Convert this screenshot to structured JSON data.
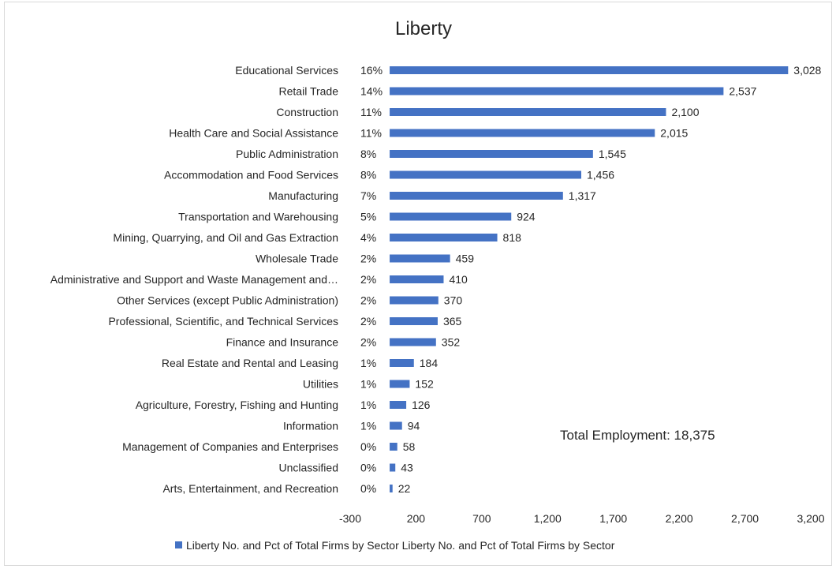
{
  "chart_data": {
    "type": "bar",
    "orientation": "horizontal",
    "title": "Liberty",
    "categories": [
      "Educational Services",
      "Retail Trade",
      "Construction",
      "Health Care and Social Assistance",
      "Public Administration",
      "Accommodation and Food Services",
      "Manufacturing",
      "Transportation and Warehousing",
      "Mining, Quarrying, and Oil and Gas Extraction",
      "Wholesale Trade",
      "Administrative and Support and Waste Management and…",
      "Other Services (except Public Administration)",
      "Professional, Scientific, and Technical Services",
      "Finance and Insurance",
      "Real Estate and Rental and Leasing",
      "Utilities",
      "Agriculture, Forestry, Fishing and Hunting",
      "Information",
      "Management of Companies and Enterprises",
      "Unclassified",
      "Arts, Entertainment, and Recreation"
    ],
    "percents": [
      "16%",
      "14%",
      "11%",
      "11%",
      "8%",
      "8%",
      "7%",
      "5%",
      "4%",
      "2%",
      "2%",
      "2%",
      "2%",
      "2%",
      "1%",
      "1%",
      "1%",
      "1%",
      "0%",
      "0%",
      "0%"
    ],
    "series": [
      {
        "name": "Liberty No. and Pct of Total Firms by Sector Liberty No. and Pct of Total Firms by Sector",
        "values": [
          3028,
          2537,
          2100,
          2015,
          1545,
          1456,
          1317,
          924,
          818,
          459,
          410,
          370,
          365,
          352,
          184,
          152,
          126,
          94,
          58,
          43,
          22
        ],
        "value_labels": [
          "3,028",
          "2,537",
          "2,100",
          "2,015",
          "1,545",
          "1,456",
          "1,317",
          "924",
          "818",
          "459",
          "410",
          "370",
          "365",
          "352",
          "184",
          "152",
          "126",
          "94",
          "58",
          "43",
          "22"
        ]
      }
    ],
    "xlim": [
      -300,
      3200
    ],
    "xticks": [
      -300,
      200,
      700,
      1200,
      1700,
      2200,
      2700,
      3200
    ],
    "xtick_labels": [
      "-300",
      "200",
      "700",
      "1,200",
      "1,700",
      "2,200",
      "2,700",
      "3,200"
    ],
    "grid": false,
    "legend_position": "bottom",
    "annotation": "Total Employment: 18,375",
    "colors": {
      "bar": "#4472c4",
      "text": "#262626",
      "border": "#d9d9d9"
    }
  }
}
